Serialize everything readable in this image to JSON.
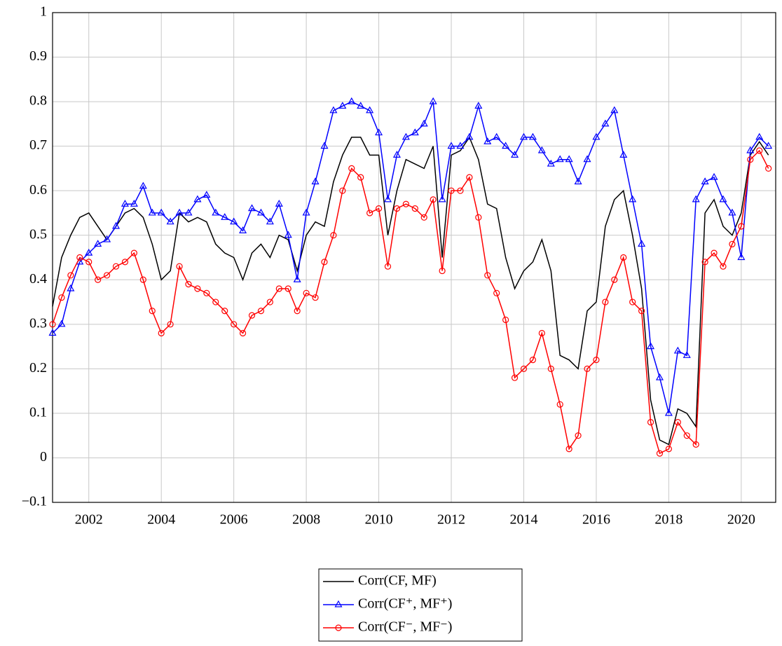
{
  "chart_data": {
    "type": "line",
    "x": [
      2001,
      2001.25,
      2001.5,
      2001.75,
      2002,
      2002.25,
      2002.5,
      2002.75,
      2003,
      2003.25,
      2003.5,
      2003.75,
      2004,
      2004.25,
      2004.5,
      2004.75,
      2005,
      2005.25,
      2005.5,
      2005.75,
      2006,
      2006.25,
      2006.5,
      2006.75,
      2007,
      2007.25,
      2007.5,
      2007.75,
      2008,
      2008.25,
      2008.5,
      2008.75,
      2009,
      2009.25,
      2009.5,
      2009.75,
      2010,
      2010.25,
      2010.5,
      2010.75,
      2011,
      2011.25,
      2011.5,
      2011.75,
      2012,
      2012.25,
      2012.5,
      2012.75,
      2013,
      2013.25,
      2013.5,
      2013.75,
      2014,
      2014.25,
      2014.5,
      2014.75,
      2015,
      2015.25,
      2015.5,
      2015.75,
      2016,
      2016.25,
      2016.5,
      2016.75,
      2017,
      2017.25,
      2017.5,
      2017.75,
      2018,
      2018.25,
      2018.5,
      2018.75,
      2019,
      2019.25,
      2019.5,
      2019.75,
      2020,
      2020.25,
      2020.5,
      2020.75
    ],
    "series": [
      {
        "name": "Corr(CF, MF)",
        "color": "#000000",
        "marker": "none",
        "values": [
          0.34,
          0.45,
          0.5,
          0.54,
          0.55,
          0.52,
          0.49,
          0.52,
          0.55,
          0.56,
          0.54,
          0.48,
          0.4,
          0.42,
          0.55,
          0.53,
          0.54,
          0.53,
          0.48,
          0.46,
          0.45,
          0.4,
          0.46,
          0.48,
          0.45,
          0.5,
          0.49,
          0.42,
          0.5,
          0.53,
          0.52,
          0.62,
          0.68,
          0.72,
          0.72,
          0.68,
          0.68,
          0.5,
          0.6,
          0.67,
          0.66,
          0.65,
          0.7,
          0.45,
          0.68,
          0.69,
          0.72,
          0.67,
          0.57,
          0.56,
          0.45,
          0.38,
          0.42,
          0.44,
          0.49,
          0.42,
          0.23,
          0.22,
          0.2,
          0.33,
          0.35,
          0.52,
          0.58,
          0.6,
          0.5,
          0.38,
          0.13,
          0.04,
          0.03,
          0.11,
          0.1,
          0.07,
          0.55,
          0.58,
          0.52,
          0.5,
          0.55,
          0.68,
          0.71,
          0.68
        ]
      },
      {
        "name": "Corr(CF⁺, MF⁺)",
        "color": "#0000ff",
        "marker": "triangle",
        "values": [
          0.28,
          0.3,
          0.38,
          0.44,
          0.46,
          0.48,
          0.49,
          0.52,
          0.57,
          0.57,
          0.61,
          0.55,
          0.55,
          0.53,
          0.55,
          0.55,
          0.58,
          0.59,
          0.55,
          0.54,
          0.53,
          0.51,
          0.56,
          0.55,
          0.53,
          0.57,
          0.5,
          0.4,
          0.55,
          0.62,
          0.7,
          0.78,
          0.79,
          0.8,
          0.79,
          0.78,
          0.73,
          0.58,
          0.68,
          0.72,
          0.73,
          0.75,
          0.8,
          0.58,
          0.7,
          0.7,
          0.72,
          0.79,
          0.71,
          0.72,
          0.7,
          0.68,
          0.72,
          0.72,
          0.69,
          0.66,
          0.67,
          0.67,
          0.62,
          0.67,
          0.72,
          0.75,
          0.78,
          0.68,
          0.58,
          0.48,
          0.25,
          0.18,
          0.1,
          0.24,
          0.23,
          0.58,
          0.62,
          0.63,
          0.58,
          0.55,
          0.45,
          0.69,
          0.72,
          0.7
        ]
      },
      {
        "name": "Corr(CF⁻, MF⁻)",
        "color": "#ff0000",
        "marker": "circle",
        "values": [
          0.3,
          0.36,
          0.41,
          0.45,
          0.44,
          0.4,
          0.41,
          0.43,
          0.44,
          0.46,
          0.4,
          0.33,
          0.28,
          0.3,
          0.43,
          0.39,
          0.38,
          0.37,
          0.35,
          0.33,
          0.3,
          0.28,
          0.32,
          0.33,
          0.35,
          0.38,
          0.38,
          0.33,
          0.37,
          0.36,
          0.44,
          0.5,
          0.6,
          0.65,
          0.63,
          0.55,
          0.56,
          0.43,
          0.56,
          0.57,
          0.56,
          0.54,
          0.58,
          0.42,
          0.6,
          0.6,
          0.63,
          0.54,
          0.41,
          0.37,
          0.31,
          0.18,
          0.2,
          0.22,
          0.28,
          0.2,
          0.12,
          0.02,
          0.05,
          0.2,
          0.22,
          0.35,
          0.4,
          0.45,
          0.35,
          0.33,
          0.08,
          0.01,
          0.02,
          0.08,
          0.05,
          0.03,
          0.44,
          0.46,
          0.43,
          0.48,
          0.52,
          0.67,
          0.69,
          0.65
        ]
      }
    ],
    "xlim": [
      2001,
      2020.95
    ],
    "ylim": [
      -0.1,
      1
    ],
    "xticks": [
      2002,
      2004,
      2006,
      2008,
      2010,
      2012,
      2014,
      2016,
      2018,
      2020
    ],
    "yticks": [
      {
        "value": -0.1,
        "label": "−0.1"
      },
      0,
      0.1,
      0.2,
      0.3,
      0.4,
      0.5,
      0.6,
      0.7,
      0.8,
      0.9,
      1
    ],
    "grid": true,
    "legend": "bottom"
  }
}
